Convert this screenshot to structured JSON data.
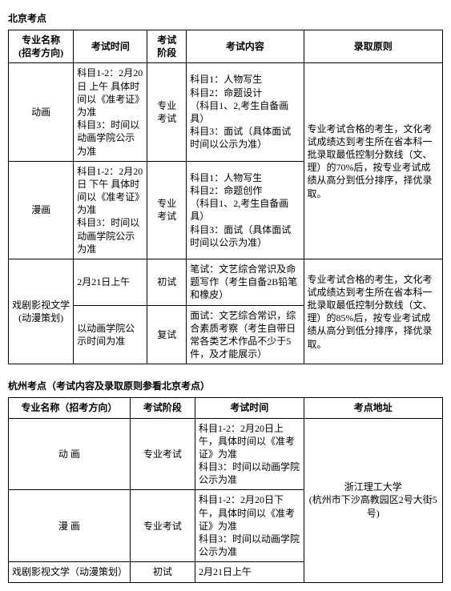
{
  "beijing": {
    "title": "北京考点",
    "headers": [
      "专业名称\n(招考方向)",
      "考试时间",
      "考试\n阶段",
      "考试内容",
      "录取原则"
    ],
    "col_widths": [
      "15%",
      "17%",
      "9%",
      "27%",
      "32%"
    ],
    "rows": [
      {
        "major": "动画",
        "time": "科目1-2：2月20日 上午 具体时间以《准考证》为准\n科目3：时间以动画学院公示为准",
        "stage": "专业\n考试",
        "content": "科目1：人物写生\n科目2：命题设计\n（科目1、2,考生自备画具）\n科目3：面试（具体面试时间以公示为准）",
        "rule": "专业考试合格的考生，文化考试成绩达到考生所在省本科一批录取最低控制分数线（文、理）的70%后，按专业考试成绩从高分到低分排序，择优录取。",
        "rule_rowspan": 2
      },
      {
        "major": "漫画",
        "time": "科目1-2：2月20日 下午 具体时间以《准考证》为准\n科目3：时间以动画学院公示为准",
        "stage": "专业\n考试",
        "content": "科目1：人物写生\n科目2：命题创作\n（科目1、2,考生自备画具）\n科目3：面试（具体面试时间以公示为准）"
      },
      {
        "major": "戏剧影视文学\n(动漫策划)",
        "major_rowspan": 2,
        "time": "2月21日上午",
        "stage": "初试",
        "content": "笔试：文艺综合常识及命题写作（考生自备2B铅笔和橡皮）",
        "rule": "专业考试合格的考生，文化考试成绩达到考生所在省本科一批录取最低控制分数线（文、理）的85%后，按专业考试成绩从高分到低分排序，择优录取。",
        "rule_rowspan": 2
      },
      {
        "time": "以动画学院公示时间为准",
        "stage": "复试",
        "content": "面试：文艺综合常识，综合素质考察（考生自带日常各类艺术作品不少于5件，及才能展示）"
      }
    ]
  },
  "hangzhou": {
    "title": "杭州考点（考试内容及录取原则参看北京考点）",
    "headers": [
      "专业名称（招考方向）",
      "考试阶段",
      "考试时间",
      "考点地址"
    ],
    "col_widths": [
      "28%",
      "15%",
      "25%",
      "32%"
    ],
    "rows": [
      {
        "major": "动  画",
        "stage": "专业考试",
        "time": "科目1-2：2月20日上午，具体时间以《准考证》为准\n科目3：时间以动画学院公示为准",
        "addr": "浙江理工大学\n(杭州市下沙高教园区2号大街5号)",
        "addr_rowspan": 3
      },
      {
        "major": "漫  画",
        "stage": "专业考试",
        "time": "科目1-2：2月20日下午，具体时间以《准考证》为准\n科目3：时间以动画学院公示为准"
      },
      {
        "major": "戏剧影视文学（动漫策划）",
        "stage": "初试",
        "time": "2月21日上午"
      }
    ]
  }
}
